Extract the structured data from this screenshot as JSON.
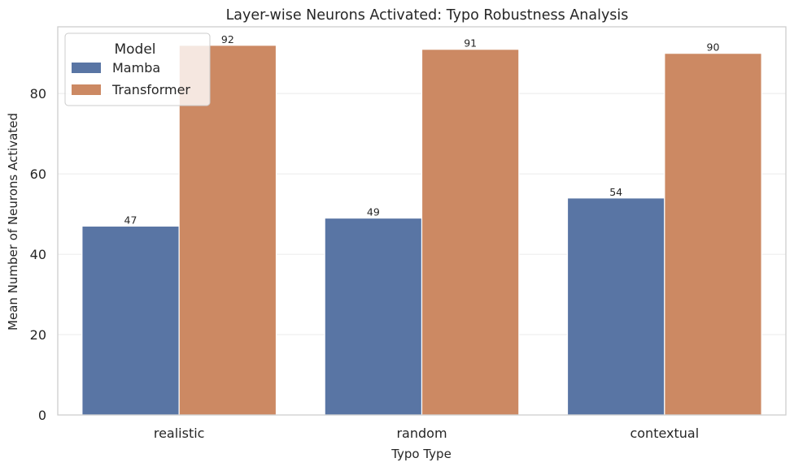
{
  "chart_data": {
    "type": "bar",
    "title": "Layer-wise Neurons Activated: Typo Robustness Analysis",
    "xlabel": "Typo Type",
    "ylabel": "Mean Number of Neurons Activated",
    "categories": [
      "realistic",
      "random",
      "contextual"
    ],
    "series": [
      {
        "name": "Mamba",
        "color": "#5975a4",
        "values": [
          47,
          49,
          54
        ],
        "data_labels": [
          "47",
          "49",
          "54"
        ]
      },
      {
        "name": "Transformer",
        "color": "#cc8963",
        "values": [
          92,
          91,
          90
        ],
        "data_labels": [
          "92",
          "91",
          "90"
        ]
      }
    ],
    "ylim": [
      0,
      96.6
    ],
    "yticks": [
      0,
      20,
      40,
      60,
      80
    ],
    "ytick_labels": [
      "0",
      "20",
      "40",
      "60",
      "80"
    ],
    "grid": true,
    "legend": {
      "title": "Model",
      "placement": "top-left"
    }
  }
}
